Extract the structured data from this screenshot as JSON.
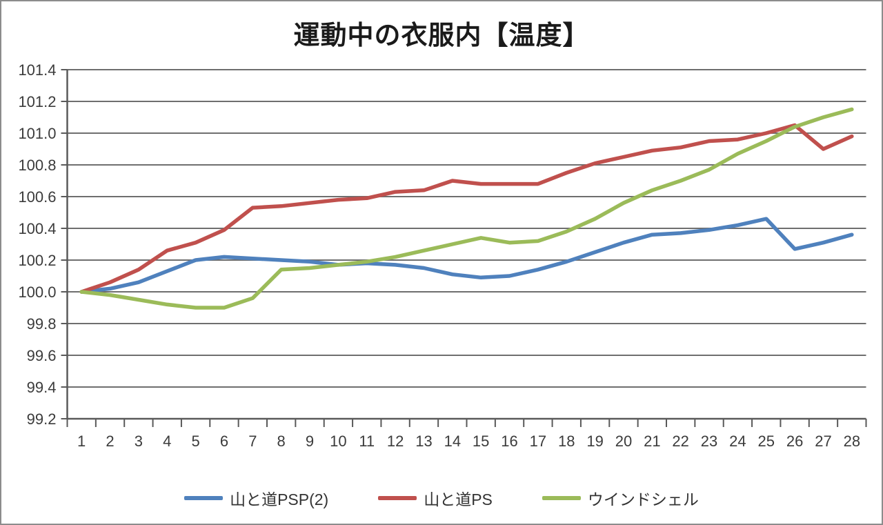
{
  "chart_data": {
    "type": "line",
    "title": "運動中の衣服内【温度】",
    "xlabel": "",
    "ylabel": "",
    "x": [
      1,
      2,
      3,
      4,
      5,
      6,
      7,
      8,
      9,
      10,
      11,
      12,
      13,
      14,
      15,
      16,
      17,
      18,
      19,
      20,
      21,
      22,
      23,
      24,
      25,
      26,
      27,
      28
    ],
    "ylim": [
      99.2,
      101.4
    ],
    "ytick_step": 0.2,
    "grid": true,
    "legend_position": "bottom",
    "series": [
      {
        "name": "山と道PSP(2)",
        "color": "#4F81BD",
        "values": [
          100.0,
          100.02,
          100.06,
          100.13,
          100.2,
          100.22,
          100.21,
          100.2,
          100.19,
          100.17,
          100.18,
          100.17,
          100.15,
          100.11,
          100.09,
          100.1,
          100.14,
          100.19,
          100.25,
          100.31,
          100.36,
          100.37,
          100.39,
          100.42,
          100.46,
          100.27,
          100.31,
          100.36
        ]
      },
      {
        "name": "山と道PS",
        "color": "#C0504D",
        "values": [
          100.0,
          100.06,
          100.14,
          100.26,
          100.31,
          100.39,
          100.53,
          100.54,
          100.56,
          100.58,
          100.59,
          100.63,
          100.64,
          100.7,
          100.68,
          100.68,
          100.68,
          100.75,
          100.81,
          100.85,
          100.89,
          100.91,
          100.95,
          100.96,
          101.0,
          101.05,
          100.9,
          100.98
        ]
      },
      {
        "name": "ウインドシェル",
        "color": "#9BBB59",
        "values": [
          100.0,
          99.98,
          99.95,
          99.92,
          99.9,
          99.9,
          99.96,
          100.14,
          100.15,
          100.17,
          100.19,
          100.22,
          100.26,
          100.3,
          100.34,
          100.31,
          100.32,
          100.38,
          100.46,
          100.56,
          100.64,
          100.7,
          100.77,
          100.87,
          100.95,
          101.04,
          101.1,
          101.15
        ]
      }
    ],
    "style": {
      "gridline_color": "#6E6E6E",
      "axis_color": "#595959",
      "tick_label_color": "#3B3B3B",
      "background": "#FFFFFF",
      "frame_border_color": "#8C8C8C"
    }
  }
}
